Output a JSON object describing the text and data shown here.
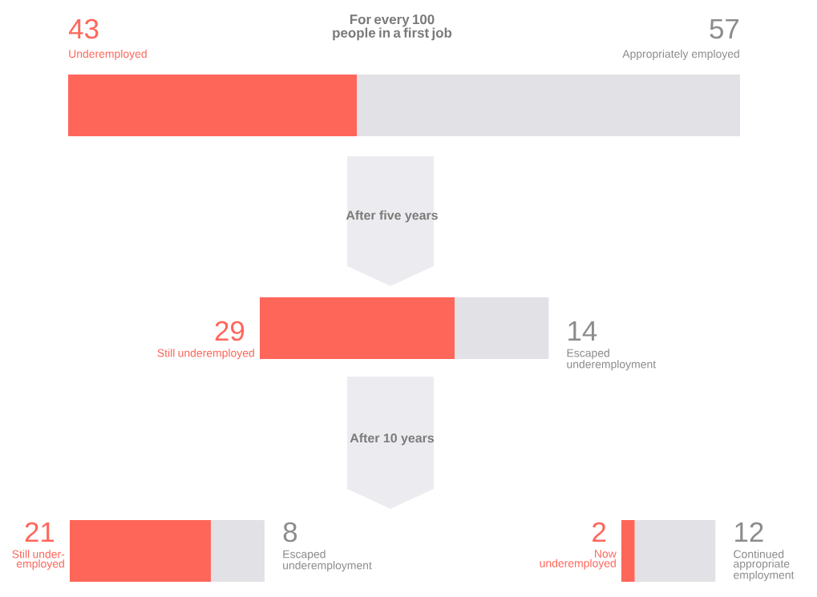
{
  "chart_data": {
    "type": "other",
    "title": "For every 100 people in a first job",
    "annotations": [
      "After five years",
      "After 10 years"
    ],
    "categories": [
      "Underemployed",
      "Appropriately employed",
      "Still underemployed",
      "Escaped underemployment",
      "Still under-employed",
      "Escaped underemployment",
      "Now underemployed",
      "Continued appropriate employment"
    ],
    "values": [
      43,
      57,
      29,
      14,
      21,
      8,
      2,
      12
    ],
    "data_labels": true,
    "colors": [
      "#ff665a",
      "#e2e1e5",
      "#ff665a",
      "#e2e1e5",
      "#ff665a",
      "#e2e1e5",
      "#ff665a",
      "#e2e1e5"
    ]
  }
}
